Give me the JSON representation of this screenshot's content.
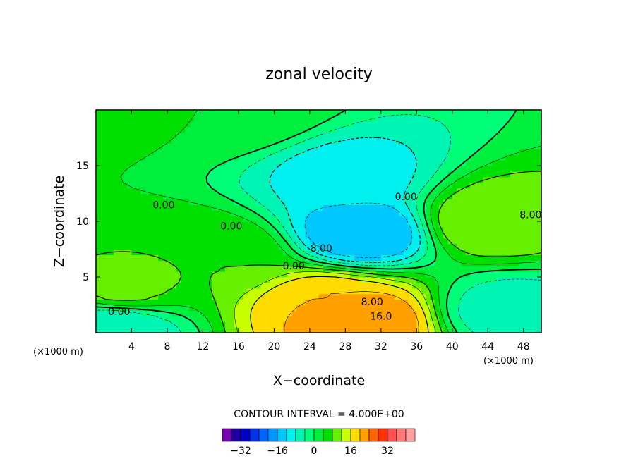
{
  "chart_data": {
    "type": "heatmap",
    "title": "zonal velocity",
    "xlabel": "X−coordinate",
    "ylabel": "Z−coordinate",
    "x_unit": "(×1000 m)",
    "y_unit": "(×1000 m)",
    "xlim": [
      0,
      50
    ],
    "ylim": [
      0,
      20
    ],
    "x_ticks": [
      4,
      8,
      12,
      16,
      20,
      24,
      28,
      32,
      36,
      40,
      44,
      48
    ],
    "y_ticks": [
      5,
      10,
      15
    ],
    "grid": false,
    "contour_interval_text": "CONTOUR INTERVAL = 4.000E+00",
    "contour_interval": 4,
    "color_levels": [
      -36,
      -32,
      -28,
      -24,
      -20,
      -16,
      -12,
      -8,
      -4,
      0,
      4,
      8,
      12,
      16,
      20,
      24,
      28,
      32,
      36
    ],
    "colorbar_colors": [
      "#7a00b4",
      "#1e00a0",
      "#0000c8",
      "#0032e6",
      "#0064ff",
      "#0096ff",
      "#00c8ff",
      "#00f0f0",
      "#00f5b4",
      "#00ff78",
      "#00ee3c",
      "#00e000",
      "#66f000",
      "#c8ff00",
      "#ffdc00",
      "#ffa000",
      "#ff6400",
      "#ff3200",
      "#ff5050",
      "#ff7878",
      "#ffa0a0"
    ],
    "colorbar_ticks": [
      "−32",
      "−16",
      "0",
      "16",
      "32"
    ],
    "colorbar_tick_values": [
      -32,
      -16,
      0,
      16,
      32
    ],
    "contour_labels": [
      {
        "text": "0.00",
        "x": 7.6,
        "z": 11.5
      },
      {
        "text": "0.00",
        "x": 15.2,
        "z": 9.6
      },
      {
        "text": "0.00",
        "x": 2.6,
        "z": 1.9
      },
      {
        "text": "0.00",
        "x": 22.2,
        "z": 6.0
      },
      {
        "text": "8.00",
        "x": 25.3,
        "z": 7.6
      },
      {
        "text": "0.00",
        "x": 34.8,
        "z": 12.2
      },
      {
        "text": "8.00",
        "x": 48.8,
        "z": 10.6
      },
      {
        "text": "8.00",
        "x": 31.0,
        "z": 2.8
      },
      {
        "text": "16.0",
        "x": 32.0,
        "z": 1.5
      }
    ],
    "field_features": [
      {
        "x": 0,
        "z": 20,
        "value": 5
      },
      {
        "x": 16,
        "z": 20,
        "value": 4
      },
      {
        "x": 28,
        "z": 14,
        "value": -10
      },
      {
        "x": 30,
        "z": 9,
        "value": -16
      },
      {
        "x": 44,
        "z": 10,
        "value": 12
      },
      {
        "x": 30,
        "z": 1,
        "value": 24
      },
      {
        "x": 26,
        "z": 2.5,
        "value": 20
      },
      {
        "x": 3,
        "z": 4,
        "value": 9
      },
      {
        "x": 2,
        "z": 0.5,
        "value": -8
      },
      {
        "x": 46,
        "z": 2,
        "value": -6
      },
      {
        "x": 14,
        "z": 7,
        "value": 8
      }
    ]
  }
}
